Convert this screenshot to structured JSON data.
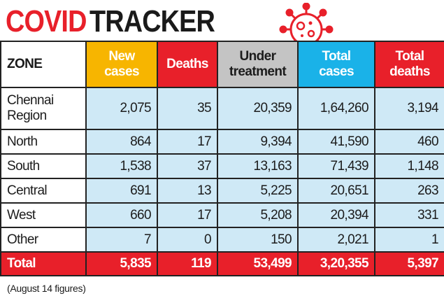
{
  "title": {
    "part1": "COVID",
    "part2": "TRACKER"
  },
  "colors": {
    "red": "#e8202a",
    "yellow": "#f7b500",
    "grey": "#c4c4c4",
    "blue": "#1ab2e8",
    "row_bg": "#cfe9f6"
  },
  "icon": "coronavirus-icon",
  "headers": {
    "zone": "ZONE",
    "new_cases": [
      "New",
      "cases"
    ],
    "deaths": "Deaths",
    "under_treatment": [
      "Under",
      "treatment"
    ],
    "total_cases": [
      "Total",
      "cases"
    ],
    "total_deaths": [
      "Total",
      "deaths"
    ]
  },
  "rows": [
    {
      "zone": [
        "Chennai",
        "Region"
      ],
      "new_cases": "2,075",
      "deaths": "35",
      "under_treatment": "20,359",
      "total_cases": "1,64,260",
      "total_deaths": "3,194"
    },
    {
      "zone": [
        "North"
      ],
      "new_cases": "864",
      "deaths": "17",
      "under_treatment": "9,394",
      "total_cases": "41,590",
      "total_deaths": "460"
    },
    {
      "zone": [
        "South"
      ],
      "new_cases": "1,538",
      "deaths": "37",
      "under_treatment": "13,163",
      "total_cases": "71,439",
      "total_deaths": "1,148"
    },
    {
      "zone": [
        "Central"
      ],
      "new_cases": "691",
      "deaths": "13",
      "under_treatment": "5,225",
      "total_cases": "20,651",
      "total_deaths": "263"
    },
    {
      "zone": [
        "West"
      ],
      "new_cases": "660",
      "deaths": "17",
      "under_treatment": "5,208",
      "total_cases": "20,394",
      "total_deaths": "331"
    },
    {
      "zone": [
        "Other"
      ],
      "new_cases": "7",
      "deaths": "0",
      "under_treatment": "150",
      "total_cases": "2,021",
      "total_deaths": "1"
    }
  ],
  "total": {
    "zone": "Total",
    "new_cases": "5,835",
    "deaths": "119",
    "under_treatment": "53,499",
    "total_cases": "3,20,355",
    "total_deaths": "5,397"
  },
  "footnote": "(August 14 figures)"
}
